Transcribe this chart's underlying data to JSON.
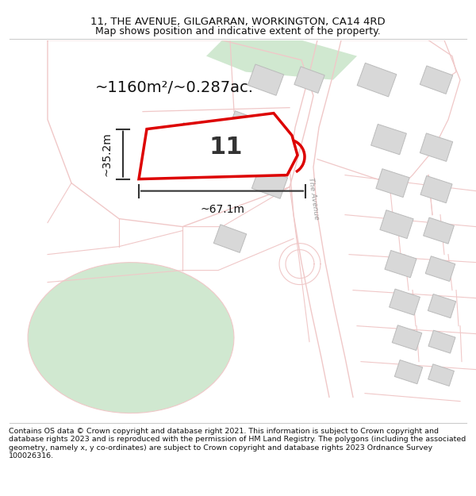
{
  "title_line1": "11, THE AVENUE, GILGARRAN, WORKINGTON, CA14 4RD",
  "title_line2": "Map shows position and indicative extent of the property.",
  "footer_text": "Contains OS data © Crown copyright and database right 2021. This information is subject to Crown copyright and database rights 2023 and is reproduced with the permission of HM Land Registry. The polygons (including the associated geometry, namely x, y co-ordinates) are subject to Crown copyright and database rights 2023 Ordnance Survey 100026316.",
  "area_label": "~1160m²/~0.287ac.",
  "width_label": "~67.1m",
  "height_label": "~35.2m",
  "property_number": "11",
  "bg_color": "#ffffff",
  "road_color": "#f0c8c8",
  "road_outline_color": "#e8b0b0",
  "highlight_color": "#dd0000",
  "building_color": "#d8d8d8",
  "building_edge_color": "#bbbbbb",
  "green_color": "#d0e8d0",
  "green_edge_color": "#c0dcc0",
  "text_dark": "#111111",
  "text_gray": "#888888",
  "title_fs": 9.5,
  "subtitle_fs": 9.0,
  "footer_fs": 6.8,
  "area_fs": 14,
  "measure_fs": 10,
  "prop_num_fs": 22
}
